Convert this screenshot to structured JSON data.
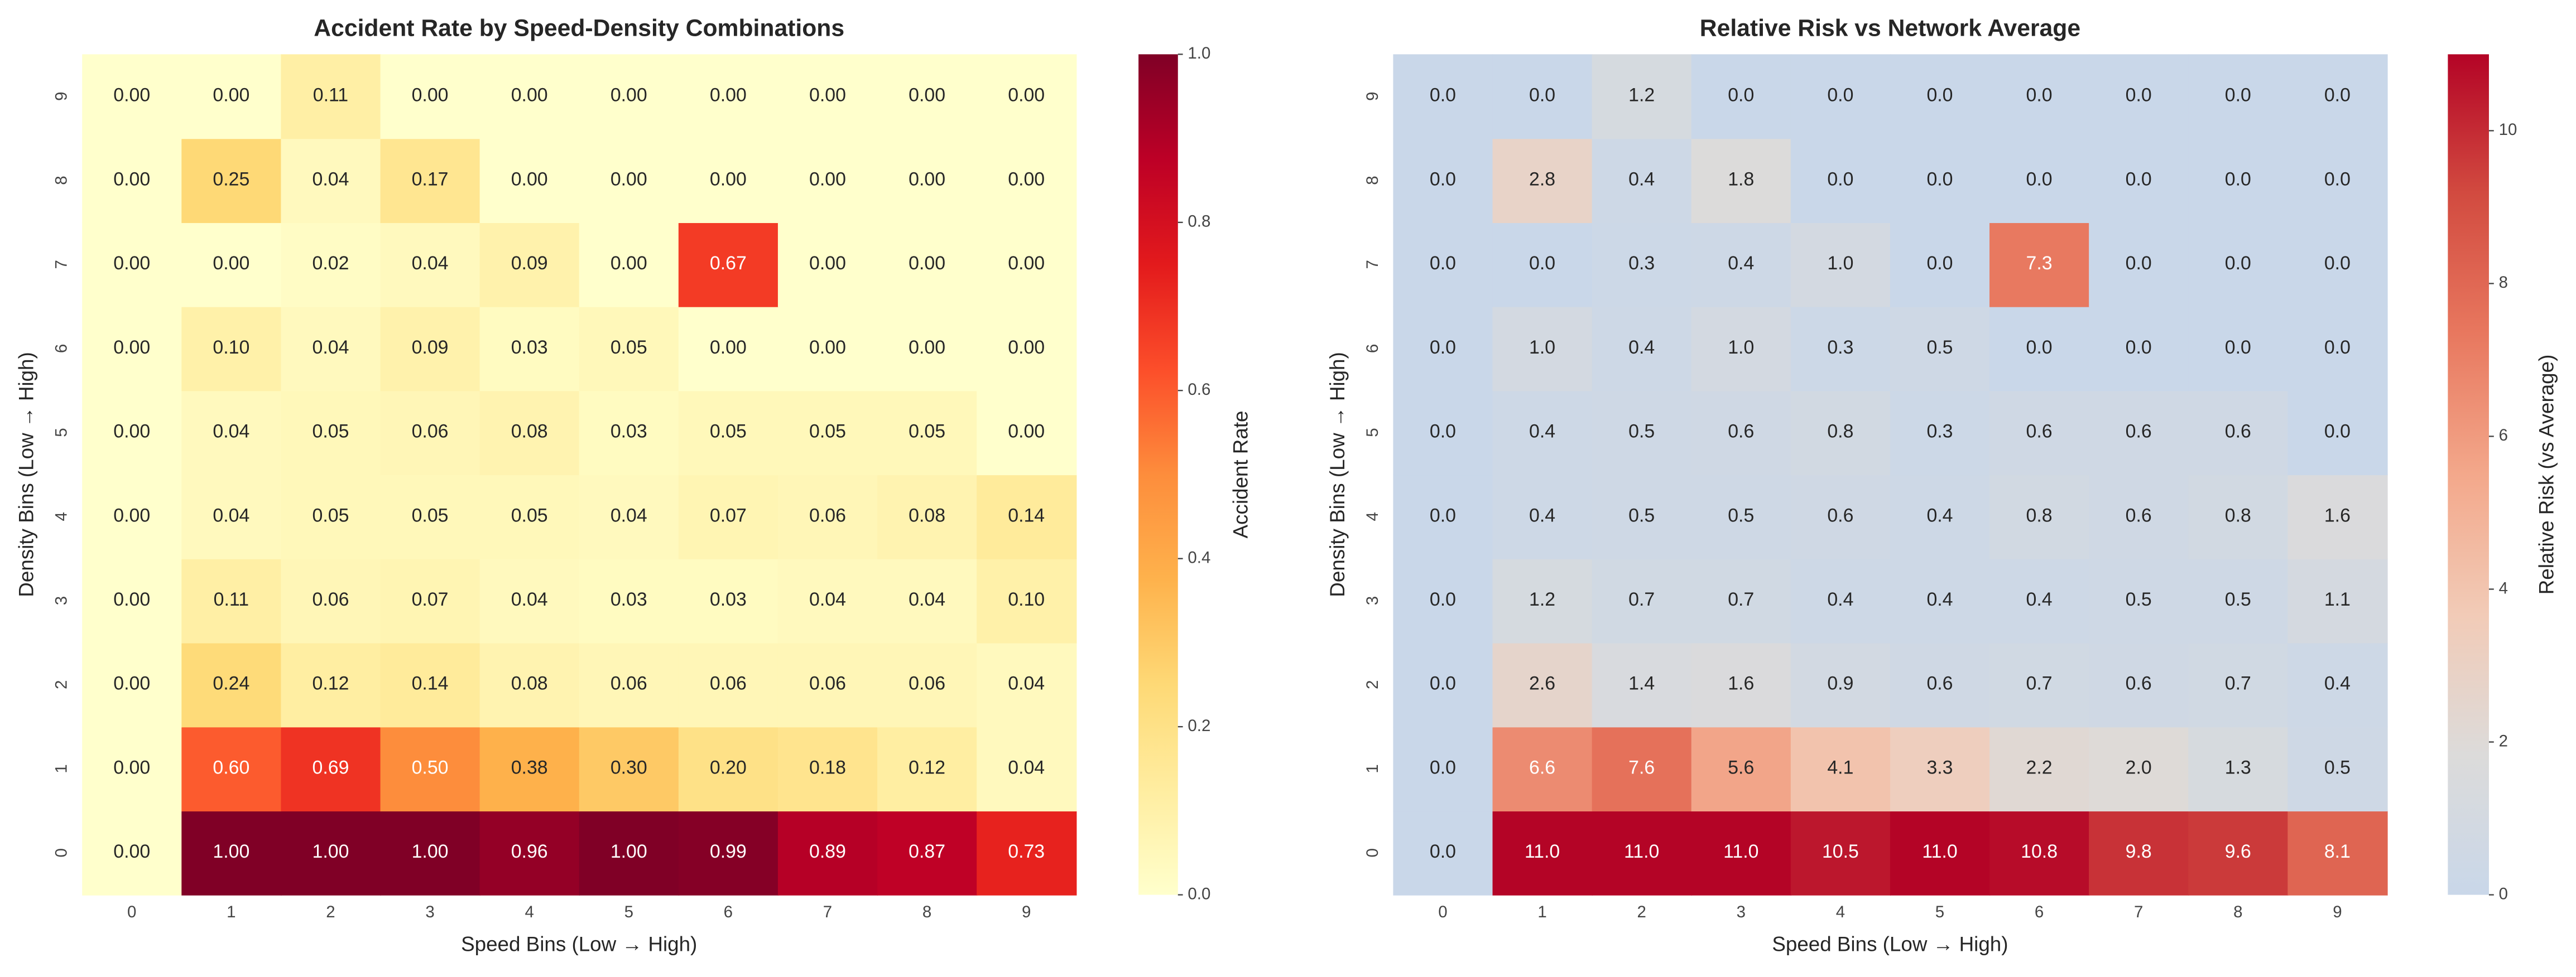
{
  "chart_data": [
    {
      "type": "heatmap",
      "title": "Accident Rate by Speed-Density Combinations",
      "xlabel": "Speed Bins (Low → High)",
      "ylabel": "Density Bins (Low → High)",
      "colorbar_label": "Accident Rate",
      "x_categories": [
        "0",
        "1",
        "2",
        "3",
        "4",
        "5",
        "6",
        "7",
        "8",
        "9"
      ],
      "y_categories": [
        "0",
        "1",
        "2",
        "3",
        "4",
        "5",
        "6",
        "7",
        "8",
        "9"
      ],
      "values": [
        [
          0.0,
          1.0,
          1.0,
          1.0,
          0.96,
          1.0,
          0.99,
          0.89,
          0.87,
          0.73
        ],
        [
          0.0,
          0.6,
          0.69,
          0.5,
          0.38,
          0.3,
          0.2,
          0.18,
          0.12,
          0.04
        ],
        [
          0.0,
          0.24,
          0.12,
          0.14,
          0.08,
          0.06,
          0.06,
          0.06,
          0.06,
          0.04
        ],
        [
          0.0,
          0.11,
          0.06,
          0.07,
          0.04,
          0.03,
          0.03,
          0.04,
          0.04,
          0.1
        ],
        [
          0.0,
          0.04,
          0.05,
          0.05,
          0.05,
          0.04,
          0.07,
          0.06,
          0.08,
          0.14
        ],
        [
          0.0,
          0.04,
          0.05,
          0.06,
          0.08,
          0.03,
          0.05,
          0.05,
          0.05,
          0.0
        ],
        [
          0.0,
          0.1,
          0.04,
          0.09,
          0.03,
          0.05,
          0.0,
          0.0,
          0.0,
          0.0
        ],
        [
          0.0,
          0.0,
          0.02,
          0.04,
          0.09,
          0.0,
          0.67,
          0.0,
          0.0,
          0.0
        ],
        [
          0.0,
          0.25,
          0.04,
          0.17,
          0.0,
          0.0,
          0.0,
          0.0,
          0.0,
          0.0
        ],
        [
          0.0,
          0.0,
          0.11,
          0.0,
          0.0,
          0.0,
          0.0,
          0.0,
          0.0,
          0.0
        ]
      ],
      "value_labels": [
        [
          "0.00",
          "1.00",
          "1.00",
          "1.00",
          "0.96",
          "1.00",
          "0.99",
          "0.89",
          "0.87",
          "0.73"
        ],
        [
          "0.00",
          "0.60",
          "0.69",
          "0.50",
          "0.38",
          "0.30",
          "0.20",
          "0.18",
          "0.12",
          "0.04"
        ],
        [
          "0.00",
          "0.24",
          "0.12",
          "0.14",
          "0.08",
          "0.06",
          "0.06",
          "0.06",
          "0.06",
          "0.04"
        ],
        [
          "0.00",
          "0.11",
          "0.06",
          "0.07",
          "0.04",
          "0.03",
          "0.03",
          "0.04",
          "0.04",
          "0.10"
        ],
        [
          "0.00",
          "0.04",
          "0.05",
          "0.05",
          "0.05",
          "0.04",
          "0.07",
          "0.06",
          "0.08",
          "0.14"
        ],
        [
          "0.00",
          "0.04",
          "0.05",
          "0.06",
          "0.08",
          "0.03",
          "0.05",
          "0.05",
          "0.05",
          "0.00"
        ],
        [
          "0.00",
          "0.10",
          "0.04",
          "0.09",
          "0.03",
          "0.05",
          "0.00",
          "0.00",
          "0.00",
          "0.00"
        ],
        [
          "0.00",
          "0.00",
          "0.02",
          "0.04",
          "0.09",
          "0.00",
          "0.67",
          "0.00",
          "0.00",
          "0.00"
        ],
        [
          "0.00",
          "0.25",
          "0.04",
          "0.17",
          "0.00",
          "0.00",
          "0.00",
          "0.00",
          "0.00",
          "0.00"
        ],
        [
          "0.00",
          "0.00",
          "0.11",
          "0.00",
          "0.00",
          "0.00",
          "0.00",
          "0.00",
          "0.00",
          "0.00"
        ]
      ],
      "colormap": [
        "#ffffcc",
        "#ffeda0",
        "#fed976",
        "#feb24c",
        "#fd8d3c",
        "#fc4e2a",
        "#e31a1c",
        "#bd0026",
        "#800026"
      ],
      "clim": [
        0,
        1
      ],
      "cticks": [
        {
          "value": 0,
          "label": "0.0"
        },
        {
          "value": 0.2,
          "label": "0.2"
        },
        {
          "value": 0.4,
          "label": "0.4"
        },
        {
          "value": 0.6,
          "label": "0.6"
        },
        {
          "value": 0.8,
          "label": "0.8"
        },
        {
          "value": 1,
          "label": "1.0"
        }
      ]
    },
    {
      "type": "heatmap",
      "title": "Relative Risk vs Network Average",
      "xlabel": "Speed Bins (Low → High)",
      "ylabel": "Density Bins (Low → High)",
      "colorbar_label": "Relative Risk (vs Average)",
      "x_categories": [
        "0",
        "1",
        "2",
        "3",
        "4",
        "5",
        "6",
        "7",
        "8",
        "9"
      ],
      "y_categories": [
        "0",
        "1",
        "2",
        "3",
        "4",
        "5",
        "6",
        "7",
        "8",
        "9"
      ],
      "values": [
        [
          0.0,
          11.0,
          11.0,
          11.0,
          10.5,
          11.0,
          10.8,
          9.8,
          9.6,
          8.1
        ],
        [
          0.0,
          6.6,
          7.6,
          5.6,
          4.1,
          3.3,
          2.2,
          2.0,
          1.3,
          0.5
        ],
        [
          0.0,
          2.6,
          1.4,
          1.6,
          0.9,
          0.6,
          0.7,
          0.6,
          0.7,
          0.4
        ],
        [
          0.0,
          1.2,
          0.7,
          0.7,
          0.4,
          0.4,
          0.4,
          0.5,
          0.5,
          1.1
        ],
        [
          0.0,
          0.4,
          0.5,
          0.5,
          0.6,
          0.4,
          0.8,
          0.6,
          0.8,
          1.6
        ],
        [
          0.0,
          0.4,
          0.5,
          0.6,
          0.8,
          0.3,
          0.6,
          0.6,
          0.6,
          0.0
        ],
        [
          0.0,
          1.0,
          0.4,
          1.0,
          0.3,
          0.5,
          0.0,
          0.0,
          0.0,
          0.0
        ],
        [
          0.0,
          0.0,
          0.3,
          0.4,
          1.0,
          0.0,
          7.3,
          0.0,
          0.0,
          0.0
        ],
        [
          0.0,
          2.8,
          0.4,
          1.8,
          0.0,
          0.0,
          0.0,
          0.0,
          0.0,
          0.0
        ],
        [
          0.0,
          0.0,
          1.2,
          0.0,
          0.0,
          0.0,
          0.0,
          0.0,
          0.0,
          0.0
        ]
      ],
      "value_labels": [
        [
          "0.0",
          "11.0",
          "11.0",
          "11.0",
          "10.5",
          "11.0",
          "10.8",
          "9.8",
          "9.6",
          "8.1"
        ],
        [
          "0.0",
          "6.6",
          "7.6",
          "5.6",
          "4.1",
          "3.3",
          "2.2",
          "2.0",
          "1.3",
          "0.5"
        ],
        [
          "0.0",
          "2.6",
          "1.4",
          "1.6",
          "0.9",
          "0.6",
          "0.7",
          "0.6",
          "0.7",
          "0.4"
        ],
        [
          "0.0",
          "1.2",
          "0.7",
          "0.7",
          "0.4",
          "0.4",
          "0.4",
          "0.5",
          "0.5",
          "1.1"
        ],
        [
          "0.0",
          "0.4",
          "0.5",
          "0.5",
          "0.6",
          "0.4",
          "0.8",
          "0.6",
          "0.8",
          "1.6"
        ],
        [
          "0.0",
          "0.4",
          "0.5",
          "0.6",
          "0.8",
          "0.3",
          "0.6",
          "0.6",
          "0.6",
          "0.0"
        ],
        [
          "0.0",
          "1.0",
          "0.4",
          "1.0",
          "0.3",
          "0.5",
          "0.0",
          "0.0",
          "0.0",
          "0.0"
        ],
        [
          "0.0",
          "0.0",
          "0.3",
          "0.4",
          "1.0",
          "0.0",
          "7.3",
          "0.0",
          "0.0",
          "0.0"
        ],
        [
          "0.0",
          "2.8",
          "0.4",
          "1.8",
          "0.0",
          "0.0",
          "0.0",
          "0.0",
          "0.0",
          "0.0"
        ],
        [
          "0.0",
          "0.0",
          "1.2",
          "0.0",
          "0.0",
          "0.0",
          "0.0",
          "0.0",
          "0.0",
          "0.0"
        ]
      ],
      "colormap": [
        "#c9d7e9",
        "#dcdbda",
        "#f2cbb7",
        "#f3a88b",
        "#e8785f",
        "#d24b40",
        "#b40426"
      ],
      "clim": [
        0,
        11
      ],
      "cticks": [
        0,
        2,
        4,
        6,
        8,
        10
      ]
    }
  ]
}
